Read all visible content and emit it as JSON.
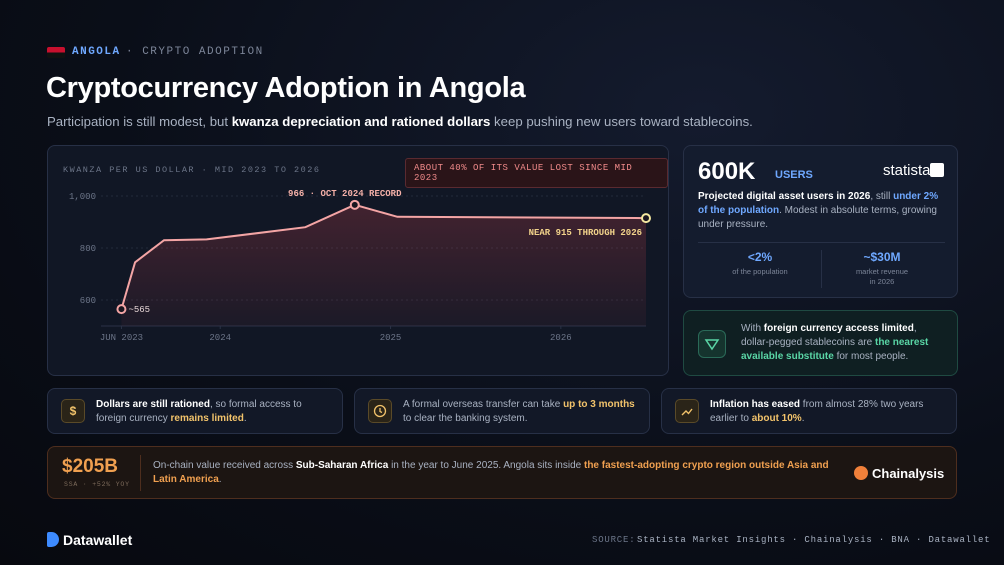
{
  "header": {
    "country": "ANGOLA",
    "section": "· CRYPTO ADOPTION"
  },
  "title": "Cryptocurrency Adoption in Angola",
  "subtitle": [
    {
      "t": "Participation is still modest, but "
    },
    {
      "t": "kwanza depreciation and rationed dollars",
      "hl": "strong"
    },
    {
      "t": " keep pushing new users toward stablecoins."
    }
  ],
  "chart_data": {
    "type": "line",
    "title": "KWANZA PER US DOLLAR · MID 2023 TO 2026",
    "callout": "ABOUT 40% OF ITS VALUE LOST SINCE MID 2023",
    "record_label": "966 · OCT 2024 RECORD",
    "end_label": "NEAR 915 THROUGH 2026",
    "start_label": "~565",
    "x": [
      2023.42,
      2023.5,
      2023.67,
      2023.92,
      2024.5,
      2024.79,
      2025.04,
      2026.5
    ],
    "values": [
      565,
      745,
      830,
      833,
      880,
      966,
      920,
      915
    ],
    "color": "#f4a5a5",
    "grid": true,
    "xlim": [
      2023.3,
      2026.5
    ],
    "xticks": [
      {
        "value": 2023.42,
        "label": "JUN 2023"
      },
      2024,
      2025,
      2026
    ],
    "ylim": [
      500,
      1100
    ],
    "yticks": [
      {
        "value": 1000,
        "label": "1,000"
      },
      800,
      600
    ]
  },
  "users_card": {
    "value": "600K",
    "unit": "USERS",
    "brand": "statista",
    "text": [
      {
        "t": "Projected digital asset users in 2026",
        "hl": "strong"
      },
      {
        "t": ", still "
      },
      {
        "t": "under 2% of the population",
        "hl": "blue"
      },
      {
        "t": ". Modest in absolute terms, growing under pressure."
      }
    ],
    "stats": [
      {
        "value": "<2%",
        "label": "of the population"
      },
      {
        "value": "~$30M",
        "label": "market revenue in 2026"
      }
    ]
  },
  "stablecoin_card": {
    "text": [
      {
        "t": "With "
      },
      {
        "t": "foreign currency access limited",
        "hl": "strong"
      },
      {
        "t": ", dollar-pegged stablecoins are "
      },
      {
        "t": "the nearest available substitute",
        "hl": "green"
      },
      {
        "t": " for most people."
      }
    ]
  },
  "facts": [
    {
      "symbol": "$",
      "text": [
        {
          "t": "Dollars are still rationed",
          "hl": "strong"
        },
        {
          "t": ", so formal access to foreign currency "
        },
        {
          "t": "remains limited",
          "hl": "amber"
        },
        {
          "t": "."
        }
      ]
    },
    {
      "text": [
        {
          "t": "A formal overseas transfer can take "
        },
        {
          "t": "up to 3 months",
          "hl": "amber"
        },
        {
          "t": " to clear the banking system."
        }
      ]
    },
    {
      "text": [
        {
          "t": "Inflation has eased",
          "hl": "strong"
        },
        {
          "t": " from almost 28% two years earlier to "
        },
        {
          "t": "about 10%",
          "hl": "amber"
        },
        {
          "t": "."
        }
      ]
    }
  ],
  "chainalysis": {
    "value": "$205B",
    "sub": "SSA · +52% YOY",
    "brand": "Chainalysis",
    "text": [
      {
        "t": "On-chain value received across "
      },
      {
        "t": "Sub-Saharan Africa",
        "hl": "strong"
      },
      {
        "t": " in the year to June 2025. Angola sits inside "
      },
      {
        "t": "the fastest-adopting crypto region outside Asia and Latin America",
        "hl": "orange"
      },
      {
        "t": "."
      }
    ]
  },
  "footer": {
    "brand": "Datawallet",
    "source_label": "SOURCE:",
    "sources": "Statista Market Insights · Chainalysis · BNA · Datawallet"
  }
}
